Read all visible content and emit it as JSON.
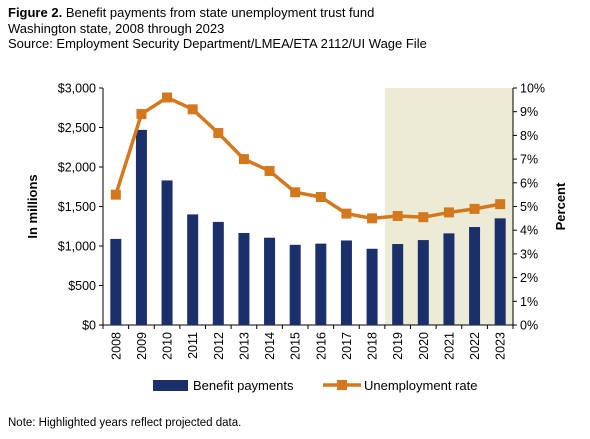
{
  "header": {
    "figure_label": "Figure 2.",
    "title": "Benefit payments from state unemployment trust fund",
    "subtitle": "Washington state, 2008 through 2023",
    "source": "Source: Employment Security Department/LMEA/ETA 2112/UI Wage File"
  },
  "note": "Note: Highlighted years reflect projected data.",
  "chart_data": {
    "type": "bar",
    "categories": [
      "2008",
      "2009",
      "2010",
      "2011",
      "2012",
      "2013",
      "2014",
      "2015",
      "2016",
      "2017",
      "2018",
      "2019",
      "2020",
      "2021",
      "2022",
      "2023"
    ],
    "series": [
      {
        "name": "Benefit payments",
        "type": "bar",
        "axis": "left",
        "color": "#1b2f6b",
        "values": [
          1090,
          2470,
          1830,
          1400,
          1305,
          1165,
          1105,
          1015,
          1030,
          1070,
          965,
          1025,
          1075,
          1160,
          1240,
          1350
        ]
      },
      {
        "name": "Unemployment rate",
        "type": "line",
        "axis": "right",
        "color": "#d4781e",
        "values": [
          5.5,
          8.9,
          9.6,
          9.1,
          8.1,
          7.0,
          6.5,
          5.6,
          5.4,
          4.7,
          4.5,
          4.6,
          4.55,
          4.75,
          4.9,
          5.1
        ]
      }
    ],
    "ylabel": "In millions",
    "y2label": "Percent",
    "ylim": [
      0,
      3000
    ],
    "y2lim": [
      0,
      10
    ],
    "yticks": [
      "$0",
      "$500",
      "$1,000",
      "$1,500",
      "$2,000",
      "$2,500",
      "$3,000"
    ],
    "y2ticks": [
      "0%",
      "1%",
      "2%",
      "3%",
      "4%",
      "5%",
      "6%",
      "7%",
      "8%",
      "9%",
      "10%"
    ],
    "highlight": {
      "from": "2019",
      "to": "2023",
      "color": "#ecebd6",
      "meaning": "projected"
    },
    "grid": false,
    "legend": "bottom"
  }
}
